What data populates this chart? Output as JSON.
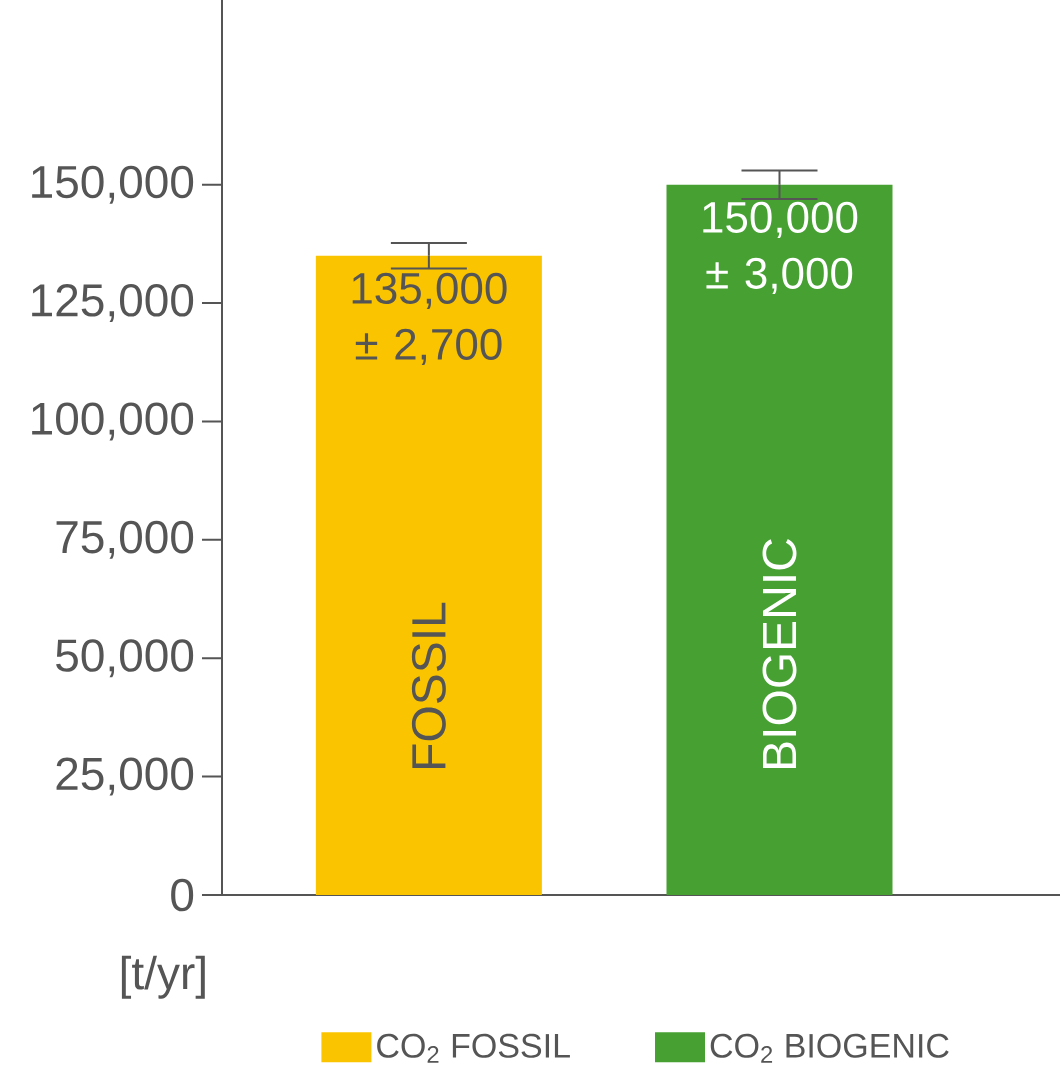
{
  "chart_data": {
    "type": "bar",
    "categories": [
      "FOSSIL",
      "BIOGENIC"
    ],
    "series": [
      {
        "name": "CO$_{2}$ FOSSIL",
        "color": "#fbc400",
        "values": [
          135000,
          null
        ],
        "errors": [
          2700,
          null
        ],
        "value_labels": [
          "135,000 ± 2,700",
          null
        ]
      },
      {
        "name": "CO$_{2}$ BIOGENIC",
        "color": "#46a032",
        "values": [
          null,
          150000
        ],
        "errors": [
          null,
          3000
        ],
        "value_labels": [
          null,
          "150,000 ± 3,000"
        ]
      }
    ],
    "ylabel": "[t/yr]",
    "ylim": [
      0,
      189000
    ],
    "yticks": [
      0,
      {
        "value": 25000,
        "label": "25,000"
      },
      {
        "value": 50000,
        "label": "50,000"
      },
      {
        "value": 75000,
        "label": "75,000"
      },
      {
        "value": 100000,
        "label": "100,000"
      },
      {
        "value": 125000,
        "label": "125,000"
      },
      {
        "value": 150000,
        "label": "150,000"
      }
    ],
    "legend": "bottom"
  }
}
